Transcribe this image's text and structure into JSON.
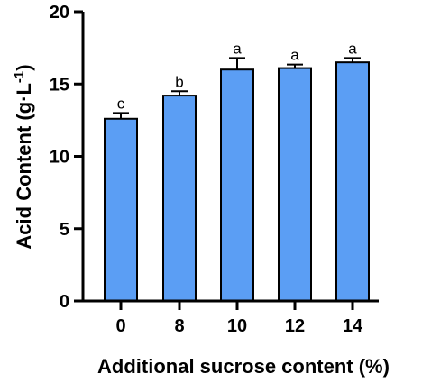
{
  "chart_data": {
    "type": "bar",
    "categories": [
      "0",
      "8",
      "10",
      "12",
      "14"
    ],
    "values": [
      12.6,
      14.2,
      16.0,
      16.1,
      16.5
    ],
    "errors": [
      0.4,
      0.3,
      0.8,
      0.25,
      0.3
    ],
    "significance": [
      "c",
      "b",
      "a",
      "a",
      "a"
    ],
    "xlabel": "Additional sucrose content (%)",
    "ylabel_main": "Acid Content (g·L",
    "ylabel_sup": "-1",
    "ylabel_end": ")",
    "ylim": [
      0,
      20
    ],
    "yticks": [
      "0",
      "5",
      "10",
      "15",
      "20"
    ],
    "bar_color": "#5b9ef4",
    "grid": false,
    "legend": "none"
  }
}
